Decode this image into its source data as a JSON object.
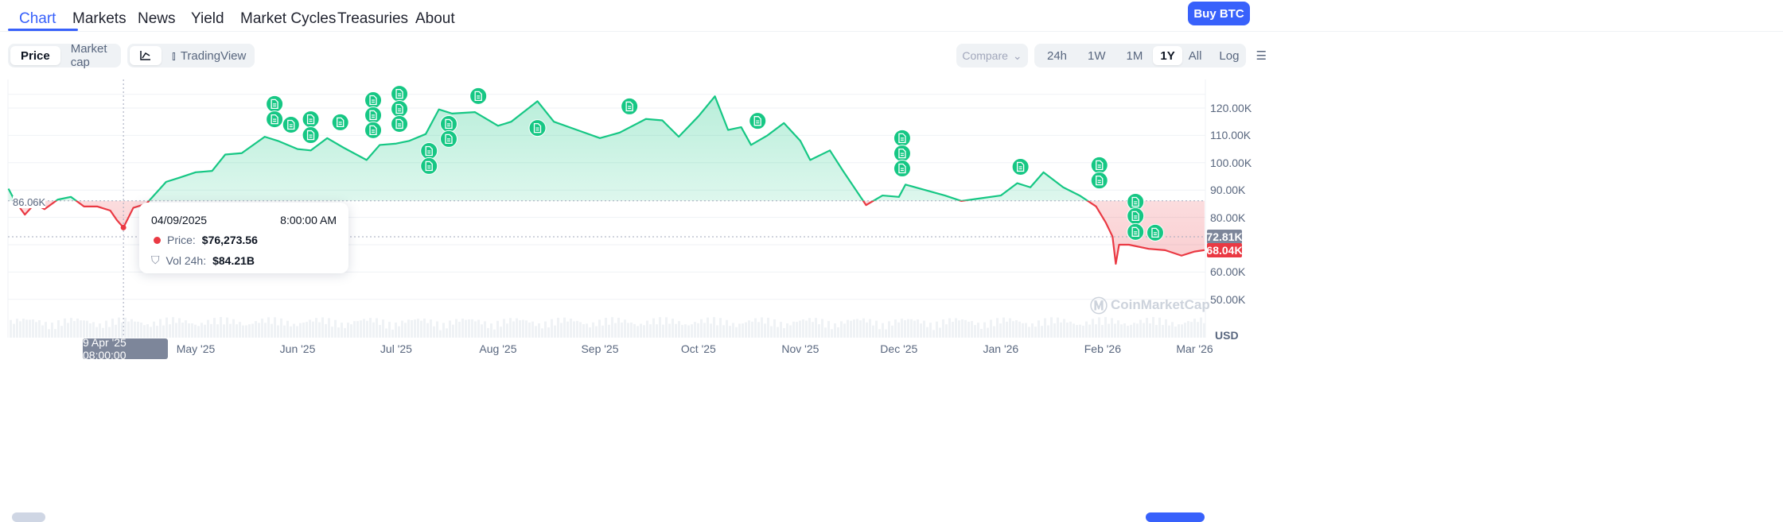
{
  "nav": {
    "tabs": [
      {
        "label": "Chart",
        "active": true
      },
      {
        "label": "Markets"
      },
      {
        "label": "News"
      },
      {
        "label": "Yield"
      },
      {
        "label": "Market Cycles"
      },
      {
        "label": "Treasuries"
      },
      {
        "label": "About"
      }
    ],
    "buy_label": "Buy BTC"
  },
  "toolbar": {
    "price": "Price",
    "market_cap": "Market cap",
    "line_icon": "line-chart-icon",
    "tradingview": "TradingView",
    "compare": "Compare",
    "ranges": [
      "24h",
      "1W",
      "1M",
      "1Y",
      "All"
    ],
    "active_range": "1Y",
    "log": "Log",
    "settings_icon": "sliders-icon"
  },
  "tooltip": {
    "date": "04/09/2025",
    "time": "8:00:00 AM",
    "price_label": "Price:",
    "price": "$76,273.56",
    "vol_label": "Vol 24h:",
    "vol": "$84.21B"
  },
  "crosshair_label": "9 Apr '25 08:00:00",
  "baseline_label": "86.06K",
  "hover_tag": "72.81K",
  "current_tag": "68.04K",
  "watermark": "CoinMarketCap",
  "colors": {
    "up": "#16c784",
    "down": "#ea3943",
    "accent": "#3861fb"
  },
  "chart_data": {
    "type": "area",
    "baseline": 86.06,
    "ylabel": "USD",
    "yticks": [
      "120.00K",
      "110.00K",
      "100.00K",
      "90.00K",
      "80.00K",
      "60.00K",
      "50.00K"
    ],
    "ytick_values": [
      120,
      110,
      100,
      90,
      80,
      60,
      50
    ],
    "xticks": [
      "May '25",
      "Jun '25",
      "Jul '25",
      "Aug '25",
      "Sep '25",
      "Oct '25",
      "Nov '25",
      "Dec '25",
      "Jan '26",
      "Feb '26",
      "Mar '26"
    ],
    "xtick_dates": [
      "2025-05-01",
      "2025-06-01",
      "2025-07-01",
      "2025-08-01",
      "2025-09-01",
      "2025-10-01",
      "2025-11-01",
      "2025-12-01",
      "2026-01-01",
      "2026-02-01",
      "2026-03-01"
    ],
    "series": [
      {
        "x": [
          "2025-03-05",
          "2025-03-07",
          "2025-03-10",
          "2025-03-13",
          "2025-03-16",
          "2025-03-20",
          "2025-03-24",
          "2025-03-28",
          "2025-04-01",
          "2025-04-05",
          "2025-04-07",
          "2025-04-09",
          "2025-04-12",
          "2025-04-16",
          "2025-04-22",
          "2025-04-26",
          "2025-05-01",
          "2025-05-06",
          "2025-05-10",
          "2025-05-15",
          "2025-05-22",
          "2025-05-26",
          "2025-06-01",
          "2025-06-05",
          "2025-06-10",
          "2025-06-15",
          "2025-06-22",
          "2025-06-26",
          "2025-07-01",
          "2025-07-05",
          "2025-07-10",
          "2025-07-14",
          "2025-07-18",
          "2025-07-25",
          "2025-08-01",
          "2025-08-05",
          "2025-08-13",
          "2025-08-18",
          "2025-08-25",
          "2025-09-01",
          "2025-09-07",
          "2025-09-15",
          "2025-09-20",
          "2025-09-25",
          "2025-10-01",
          "2025-10-06",
          "2025-10-10",
          "2025-10-14",
          "2025-10-17",
          "2025-10-22",
          "2025-10-27",
          "2025-11-01",
          "2025-11-04",
          "2025-11-10",
          "2025-11-14",
          "2025-11-21",
          "2025-11-26",
          "2025-12-01",
          "2025-12-03",
          "2025-12-09",
          "2025-12-15",
          "2025-12-20",
          "2025-12-26",
          "2026-01-01",
          "2026-01-06",
          "2026-01-10",
          "2026-01-14",
          "2026-01-20",
          "2026-01-25",
          "2026-01-30",
          "2026-02-02",
          "2026-02-04",
          "2026-02-05",
          "2026-02-06",
          "2026-02-09",
          "2026-02-15",
          "2026-02-20",
          "2026-02-25",
          "2026-03-01",
          "2026-03-04"
        ],
        "y": [
          90.5,
          86,
          81,
          85,
          83,
          86.5,
          87.5,
          84,
          84,
          82.5,
          79,
          76.27,
          83.5,
          85,
          93,
          94.5,
          96.5,
          97,
          103,
          103.5,
          109.5,
          108,
          105,
          104.5,
          109,
          105.5,
          101,
          106.5,
          107,
          108,
          110.5,
          119.5,
          118,
          118.5,
          113.5,
          115,
          122.5,
          115,
          112,
          109,
          111,
          116,
          115.5,
          109.5,
          117,
          124.3,
          112,
          113,
          106.5,
          110,
          114.5,
          108,
          101,
          104.5,
          97,
          84.5,
          88,
          87.5,
          92,
          90,
          88,
          86,
          87,
          88,
          92.5,
          91,
          96.5,
          91,
          88,
          84,
          78,
          73,
          63,
          70,
          70,
          68.5,
          68,
          66,
          67.5,
          68.04
        ]
      }
    ],
    "news_markers": [
      {
        "date": "2025-05-25",
        "price": 121.5
      },
      {
        "date": "2025-05-25",
        "price": 115.9
      },
      {
        "date": "2025-05-30",
        "price": 113.9
      },
      {
        "date": "2025-06-05",
        "price": 115.9
      },
      {
        "date": "2025-06-05",
        "price": 110.1
      },
      {
        "date": "2025-06-14",
        "price": 114.8
      },
      {
        "date": "2025-06-24",
        "price": 122.9
      },
      {
        "date": "2025-06-24",
        "price": 117.4
      },
      {
        "date": "2025-06-24",
        "price": 111.9
      },
      {
        "date": "2025-07-02",
        "price": 125.2
      },
      {
        "date": "2025-07-02",
        "price": 119.7
      },
      {
        "date": "2025-07-02",
        "price": 114.2
      },
      {
        "date": "2025-07-11",
        "price": 104.3
      },
      {
        "date": "2025-07-11",
        "price": 98.8
      },
      {
        "date": "2025-07-17",
        "price": 114.2
      },
      {
        "date": "2025-07-17",
        "price": 108.7
      },
      {
        "date": "2025-07-26",
        "price": 124.4
      },
      {
        "date": "2025-08-13",
        "price": 112.7
      },
      {
        "date": "2025-09-10",
        "price": 120.6
      },
      {
        "date": "2025-10-19",
        "price": 115.3
      },
      {
        "date": "2025-12-02",
        "price": 109.0
      },
      {
        "date": "2025-12-02",
        "price": 103.4
      },
      {
        "date": "2025-12-02",
        "price": 97.9
      },
      {
        "date": "2026-01-07",
        "price": 98.5
      },
      {
        "date": "2026-01-31",
        "price": 99.1
      },
      {
        "date": "2026-01-31",
        "price": 93.5
      },
      {
        "date": "2026-02-11",
        "price": 85.7
      },
      {
        "date": "2026-02-11",
        "price": 80.5
      },
      {
        "date": "2026-02-11",
        "price": 74.7
      },
      {
        "date": "2026-02-17",
        "price": 74.4
      }
    ],
    "hover_point": {
      "date": "2025-04-09",
      "price": 76.27
    },
    "grid": true
  }
}
